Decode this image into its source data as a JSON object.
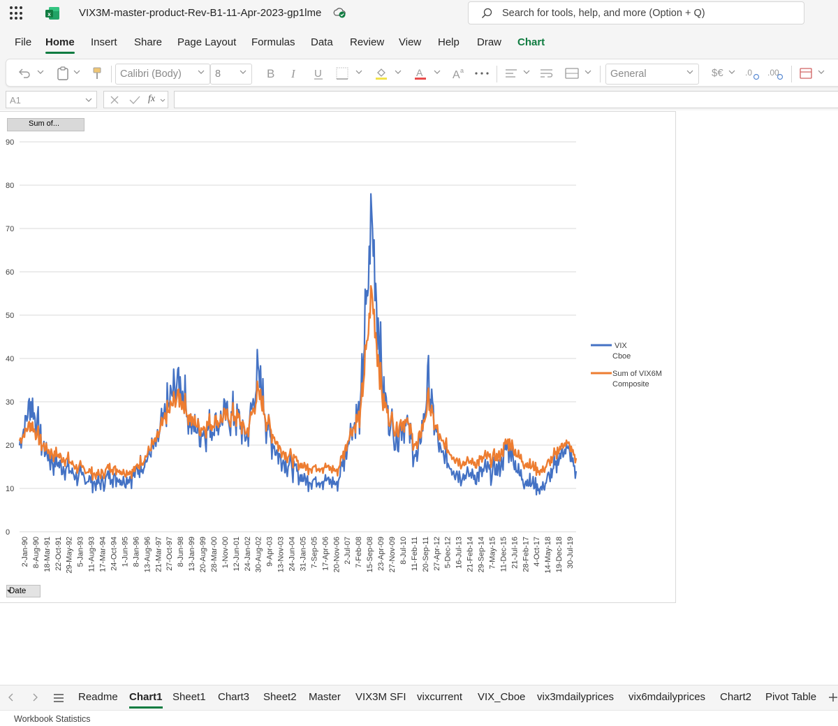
{
  "app": {
    "doc_title": "VIX3M-master-product-Rev-B1-11-Apr-2023-gp1lme",
    "search_placeholder": "Search for tools, help, and more (Option + Q)",
    "brand_color": "#107c41"
  },
  "menu": [
    "File",
    "Home",
    "Insert",
    "Share",
    "Page Layout",
    "Formulas",
    "Data",
    "Review",
    "View",
    "Help",
    "Draw",
    "Chart"
  ],
  "ribbon": {
    "font_name": "Calibri (Body)",
    "font_size": "8",
    "number_format": "General",
    "currency_label": "$€"
  },
  "formula_bar": {
    "cell_ref": "A1",
    "fx_label": "fx",
    "value": ""
  },
  "chart": {
    "field_button": "Sum of...",
    "axis_button": "Date",
    "y_ticks": [
      "90",
      "80",
      "70",
      "60",
      "50",
      "40",
      "30",
      "20",
      "10",
      "0"
    ],
    "x_ticks": [
      "2-Jan-90",
      "8-Aug-90",
      "18-Mar-91",
      "22-Oct-91",
      "29-May-92",
      "5-Jan-93",
      "11-Aug-93",
      "17-Mar-94",
      "24-Oct-94",
      "1-Jun-95",
      "8-Jan-96",
      "13-Aug-96",
      "21-Mar-97",
      "27-Oct-97",
      "8-Jun-98",
      "13-Jan-99",
      "20-Aug-99",
      "28-Mar-00",
      "1-Nov-00",
      "12-Jun-01",
      "24-Jan-02",
      "30-Aug-02",
      "9-Apr-03",
      "13-Nov-03",
      "24-Jun-04",
      "31-Jan-05",
      "7-Sep-05",
      "17-Apr-06",
      "20-Nov-06",
      "2-Jul-07",
      "7-Feb-08",
      "15-Sep-08",
      "23-Apr-09",
      "27-Nov-09",
      "8-Jul-10",
      "11-Feb-11",
      "20-Sep-11",
      "27-Apr-12",
      "5-Dec-12",
      "16-Jul-13",
      "21-Feb-14",
      "29-Sep-14",
      "7-May-15",
      "11-Dec-15",
      "21-Jul-16",
      "28-Feb-17",
      "4-Oct-17",
      "14-May-18",
      "19-Dec-18",
      "30-Jul-19"
    ],
    "legend": [
      {
        "line1": "VIX",
        "line2": "Cboe",
        "color": "#4472c4"
      },
      {
        "line1": "Sum of VIX6M",
        "line2": "Composite",
        "color": "#ed7d31"
      }
    ],
    "chart_data": {
      "type": "line",
      "ylim": [
        0,
        90
      ],
      "x": [
        "2-Jan-90",
        "8-Aug-90",
        "18-Mar-91",
        "22-Oct-91",
        "29-May-92",
        "5-Jan-93",
        "11-Aug-93",
        "17-Mar-94",
        "24-Oct-94",
        "1-Jun-95",
        "8-Jan-96",
        "13-Aug-96",
        "21-Mar-97",
        "27-Oct-97",
        "8-Jun-98",
        "13-Jan-99",
        "20-Aug-99",
        "28-Mar-00",
        "1-Nov-00",
        "12-Jun-01",
        "24-Jan-02",
        "30-Aug-02",
        "9-Apr-03",
        "13-Nov-03",
        "24-Jun-04",
        "31-Jan-05",
        "7-Sep-05",
        "17-Apr-06",
        "20-Nov-06",
        "2-Jul-07",
        "7-Feb-08",
        "15-Sep-08",
        "23-Apr-09",
        "27-Nov-09",
        "8-Jul-10",
        "11-Feb-11",
        "20-Sep-11",
        "27-Apr-12",
        "5-Dec-12",
        "16-Jul-13",
        "21-Feb-14",
        "29-Sep-14",
        "7-May-15",
        "11-Dec-15",
        "21-Jul-16",
        "28-Feb-17",
        "4-Oct-17",
        "14-May-18",
        "19-Dec-18",
        "30-Jul-19"
      ],
      "series": [
        {
          "name": "VIX Cboe",
          "color": "#4472c4",
          "values": [
            20,
            30,
            20,
            16,
            15,
            13,
            12,
            11,
            13,
            12,
            13,
            16,
            20,
            28,
            36,
            25,
            23,
            24,
            26,
            27,
            22,
            36,
            22,
            17,
            15,
            12,
            12,
            12,
            11,
            22,
            28,
            72,
            32,
            22,
            26,
            16,
            34,
            18,
            15,
            13,
            13,
            14,
            14,
            20,
            13,
            11,
            10,
            14,
            20,
            14
          ]
        },
        {
          "name": "Sum of VIX6M Composite",
          "color": "#ed7d31",
          "values": [
            21,
            25,
            20,
            18,
            17,
            15,
            14,
            13,
            15,
            14,
            14,
            17,
            21,
            27,
            32,
            26,
            24,
            25,
            26,
            27,
            23,
            32,
            24,
            19,
            17,
            15,
            15,
            15,
            14,
            22,
            27,
            55,
            30,
            24,
            26,
            19,
            30,
            21,
            18,
            16,
            16,
            17,
            17,
            21,
            17,
            15,
            14,
            17,
            21,
            17
          ]
        }
      ]
    }
  },
  "tabs": [
    "Readme",
    "Chart1",
    "Sheet1",
    "Chart3",
    "Sheet2",
    "Master",
    "VIX3M SFI",
    "vixcurrent",
    "VIX_Cboe",
    "vix3mdailyprices",
    "vix6mdailyprices",
    "Chart2",
    "Pivot Table"
  ],
  "active_tab": "Chart1",
  "status": "Workbook Statistics"
}
